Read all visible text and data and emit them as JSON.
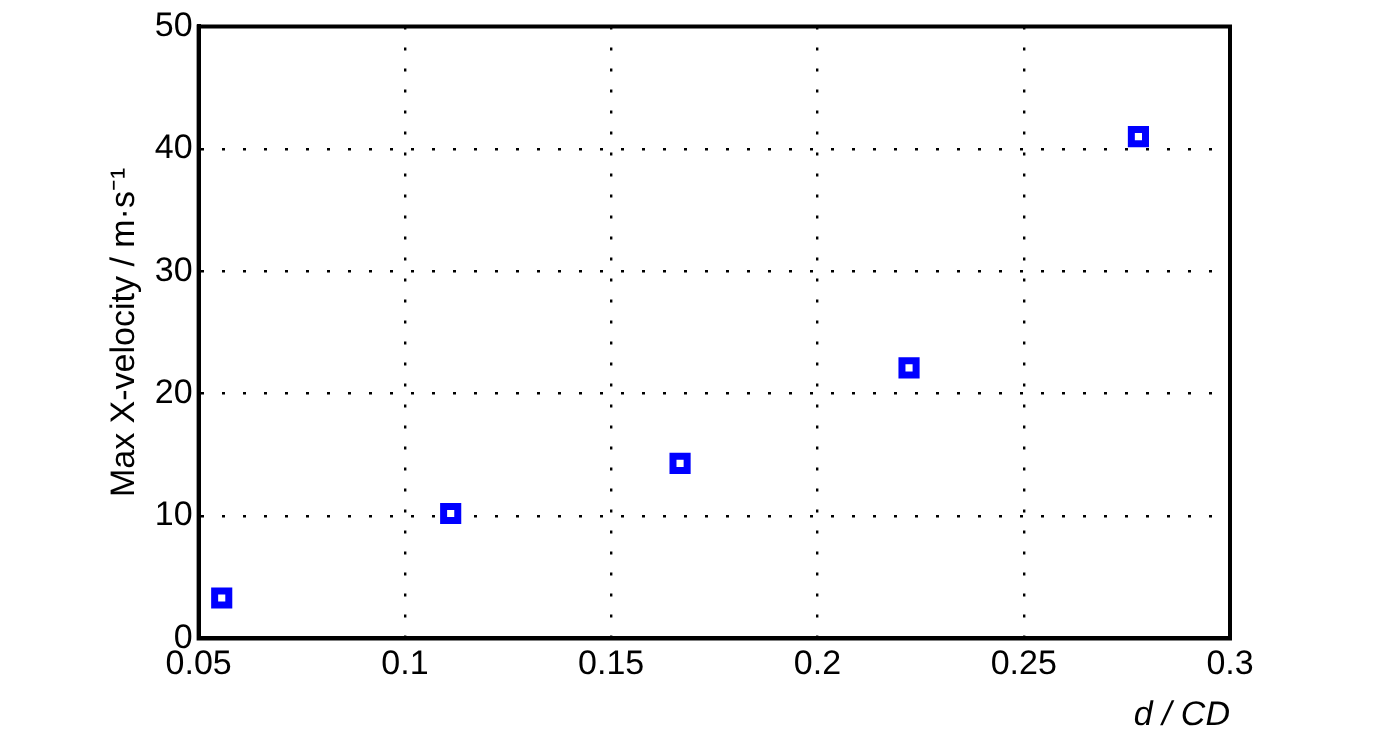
{
  "chart_data": {
    "type": "scatter",
    "xlabel": "d / CD",
    "ylabel": "Max X-velocity / m·s⁻¹",
    "x": [
      0.0556,
      0.1111,
      0.1667,
      0.2222,
      0.2778
    ],
    "series": [
      {
        "color": "#0000ff",
        "values": [
          3.3,
          10.2,
          14.3,
          22.1,
          41.0
        ]
      }
    ],
    "xlim": [
      0.05,
      0.3
    ],
    "xticks": [
      0.05,
      0.1,
      0.15,
      0.2,
      0.25,
      0.3
    ],
    "ylim": [
      0,
      50
    ],
    "yticks": [
      0,
      10,
      20,
      30,
      40,
      50
    ],
    "grid": true,
    "marker": "square",
    "legend": false
  }
}
